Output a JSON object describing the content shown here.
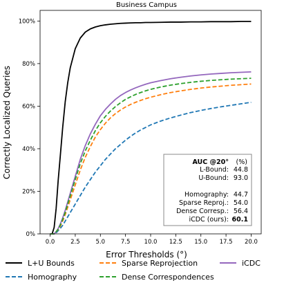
{
  "chart_data": {
    "type": "line",
    "title": "Business Campus",
    "xlabel": "Error Thresholds (°)",
    "ylabel": "Correctly Localized Queries",
    "xlim": [
      -1,
      21
    ],
    "ylim": [
      0,
      1.05
    ],
    "x_ticks": [
      0.0,
      2.5,
      5.0,
      7.5,
      10.0,
      12.5,
      15.0,
      17.5,
      20.0
    ],
    "x_tick_labels": [
      "0.0",
      "2.5",
      "5.0",
      "7.5",
      "10.0",
      "12.5",
      "15.0",
      "17.5",
      "20.0"
    ],
    "y_ticks": [
      0,
      0.2,
      0.4,
      0.6,
      0.8,
      1.0
    ],
    "y_tick_labels": [
      "0%",
      "20%",
      "40%",
      "60%",
      "80%",
      "100%"
    ],
    "grid": false,
    "legend_position": "bottom",
    "x": [
      0,
      0.2,
      0.4,
      0.6,
      0.8,
      1,
      1.25,
      1.5,
      1.75,
      2,
      2.5,
      3,
      3.5,
      4,
      4.5,
      5,
      5.5,
      6,
      6.5,
      7,
      7.5,
      8,
      8.5,
      9,
      9.5,
      10,
      11,
      12,
      13,
      14,
      15,
      16,
      17,
      18,
      19,
      20
    ],
    "series": [
      {
        "name": "L+U Bounds",
        "color": "#000000",
        "dash": "solid",
        "values": [
          0.0,
          0.0,
          0.03,
          0.12,
          0.25,
          0.36,
          0.5,
          0.62,
          0.71,
          0.78,
          0.87,
          0.92,
          0.948,
          0.963,
          0.972,
          0.978,
          0.982,
          0.985,
          0.987,
          0.989,
          0.99,
          0.991,
          0.992,
          0.992,
          0.993,
          0.993,
          0.994,
          0.995,
          0.995,
          0.996,
          0.996,
          0.997,
          0.997,
          0.997,
          0.998,
          0.998
        ]
      },
      {
        "name": "Homography",
        "color": "#1f77b4",
        "dash": "dashed",
        "values": [
          0.0,
          0.0,
          0.0,
          0.005,
          0.015,
          0.025,
          0.04,
          0.06,
          0.08,
          0.1,
          0.14,
          0.18,
          0.22,
          0.255,
          0.29,
          0.32,
          0.35,
          0.375,
          0.4,
          0.42,
          0.44,
          0.458,
          0.474,
          0.488,
          0.5,
          0.512,
          0.53,
          0.545,
          0.558,
          0.57,
          0.58,
          0.589,
          0.597,
          0.604,
          0.611,
          0.618
        ]
      },
      {
        "name": "Sparse Reprojection",
        "color": "#ff7f0e",
        "dash": "dashed",
        "values": [
          0.0,
          0.0,
          0.0,
          0.01,
          0.02,
          0.035,
          0.06,
          0.09,
          0.125,
          0.16,
          0.23,
          0.3,
          0.36,
          0.41,
          0.455,
          0.49,
          0.52,
          0.545,
          0.565,
          0.582,
          0.596,
          0.608,
          0.618,
          0.627,
          0.635,
          0.642,
          0.654,
          0.664,
          0.672,
          0.679,
          0.685,
          0.69,
          0.694,
          0.698,
          0.701,
          0.704
        ]
      },
      {
        "name": "iCDC",
        "color": "#9467bd",
        "dash": "solid",
        "values": [
          0.0,
          0.0,
          0.0,
          0.01,
          0.025,
          0.045,
          0.075,
          0.11,
          0.15,
          0.19,
          0.27,
          0.35,
          0.415,
          0.47,
          0.515,
          0.555,
          0.585,
          0.61,
          0.632,
          0.65,
          0.664,
          0.676,
          0.686,
          0.695,
          0.703,
          0.71,
          0.72,
          0.729,
          0.736,
          0.742,
          0.747,
          0.751,
          0.754,
          0.757,
          0.759,
          0.761
        ]
      },
      {
        "name": "Dense Correspondences",
        "color": "#2ca02c",
        "dash": "dashed",
        "values": [
          0.0,
          0.0,
          0.0,
          0.01,
          0.022,
          0.04,
          0.068,
          0.1,
          0.14,
          0.178,
          0.255,
          0.33,
          0.39,
          0.44,
          0.485,
          0.522,
          0.552,
          0.577,
          0.598,
          0.616,
          0.632,
          0.644,
          0.655,
          0.664,
          0.672,
          0.679,
          0.69,
          0.699,
          0.706,
          0.712,
          0.717,
          0.721,
          0.724,
          0.727,
          0.729,
          0.731
        ]
      }
    ],
    "annotation_box": {
      "heading_bold": "AUC @20°",
      "heading_suffix": "(%)",
      "rows": [
        {
          "label": "L-Bound:",
          "value": "44.8",
          "bold": false
        },
        {
          "label": "U-Bound:",
          "value": "93.0",
          "bold": false
        },
        {
          "label": "Homography:",
          "value": "44.7",
          "bold": false
        },
        {
          "label": "Sparse Reproj.:",
          "value": "54.0",
          "bold": false
        },
        {
          "label": "Dense Corresp.:",
          "value": "56.4",
          "bold": false
        },
        {
          "label": "iCDC (ours):",
          "value": "60.1",
          "bold": true
        }
      ]
    },
    "legend_items": [
      {
        "label": "L+U Bounds",
        "color": "#000000",
        "dash": "solid"
      },
      {
        "label": "Sparse Reprojection",
        "color": "#ff7f0e",
        "dash": "dashed"
      },
      {
        "label": "iCDC",
        "color": "#9467bd",
        "dash": "solid"
      },
      {
        "label": "Homography",
        "color": "#1f77b4",
        "dash": "dashed"
      },
      {
        "label": "Dense Correspondences",
        "color": "#2ca02c",
        "dash": "dashed"
      }
    ]
  }
}
